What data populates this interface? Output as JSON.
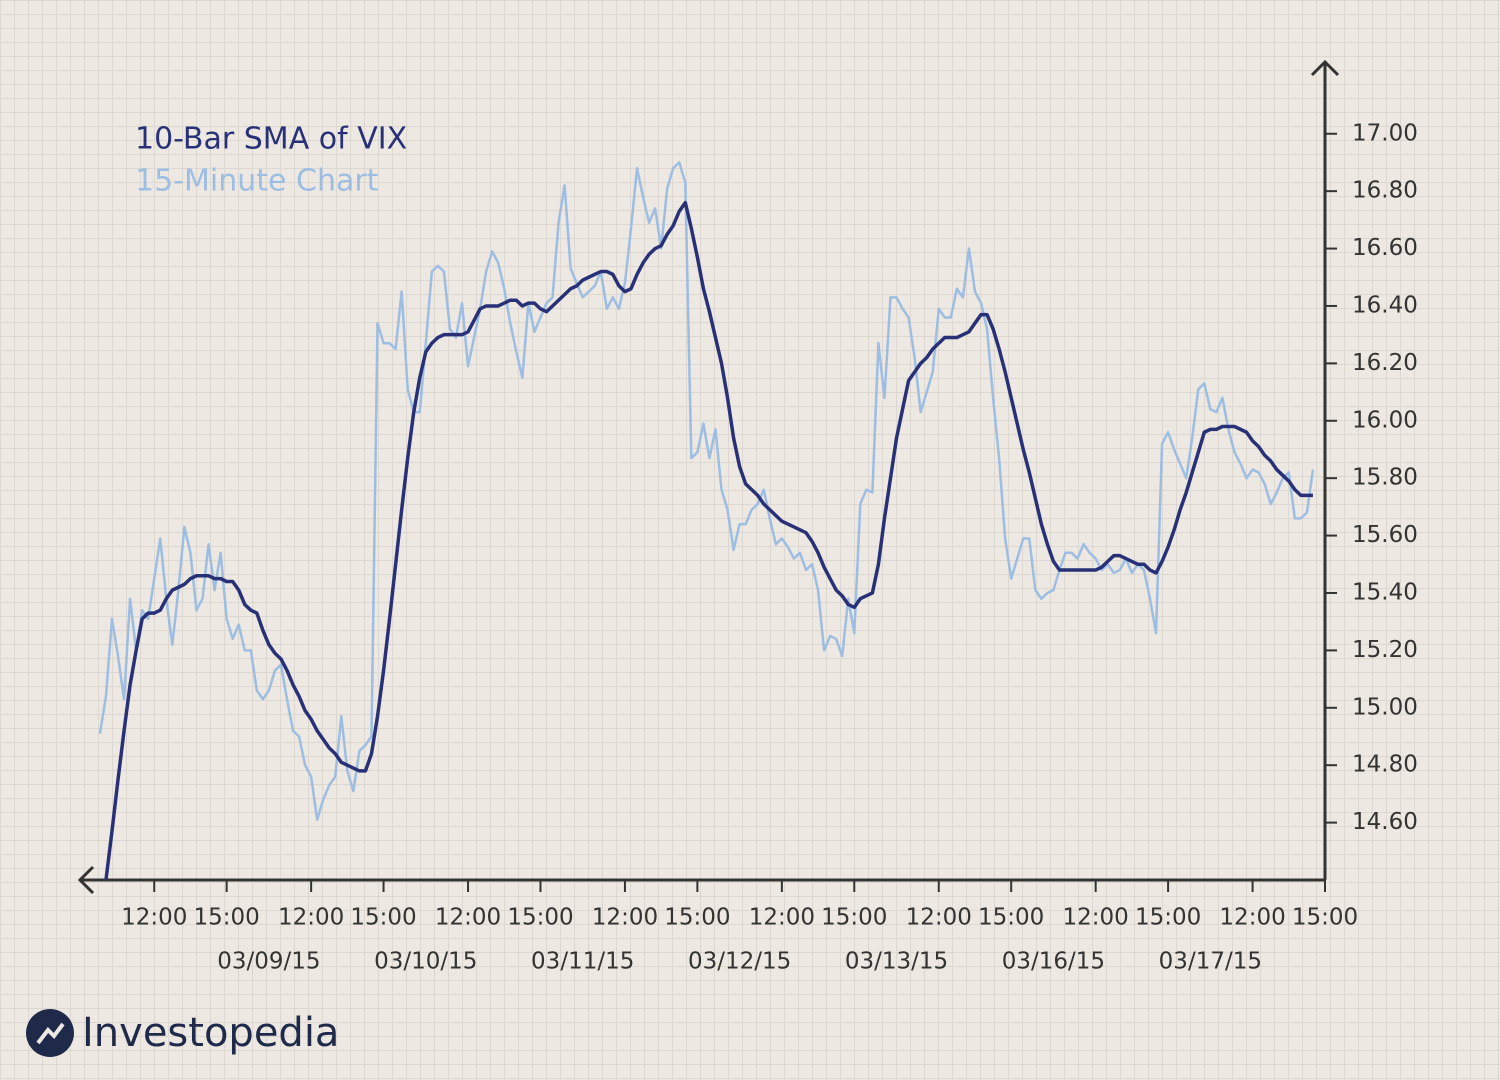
{
  "chart_data": {
    "type": "line",
    "series": [
      {
        "name": "10-Bar SMA of VIX",
        "color": "#283177",
        "values": [
          null,
          14.4,
          14.57,
          14.75,
          14.92,
          15.08,
          15.2,
          15.31,
          15.33,
          15.33,
          15.34,
          15.38,
          15.41,
          15.42,
          15.43,
          15.45,
          15.46,
          15.46,
          15.46,
          15.45,
          15.45,
          15.44,
          15.44,
          15.41,
          15.36,
          15.34,
          15.33,
          15.27,
          15.22,
          15.19,
          15.17,
          15.13,
          15.08,
          15.04,
          14.99,
          14.96,
          14.92,
          14.89,
          14.86,
          14.84,
          14.81,
          14.8,
          14.79,
          14.78,
          14.78,
          14.84,
          14.97,
          15.13,
          15.31,
          15.5,
          15.69,
          15.87,
          16.03,
          16.15,
          16.24,
          16.27,
          16.29,
          16.3,
          16.3,
          16.3,
          16.3,
          16.31,
          16.35,
          16.39,
          16.4,
          16.4,
          16.4,
          16.41,
          16.42,
          16.42,
          16.4,
          16.41,
          16.41,
          16.39,
          16.38,
          16.4,
          16.42,
          16.44,
          16.46,
          16.47,
          16.49,
          16.5,
          16.51,
          16.52,
          16.52,
          16.51,
          16.47,
          16.45,
          16.46,
          16.51,
          16.55,
          16.58,
          16.6,
          16.61,
          16.65,
          16.68,
          16.73,
          16.76,
          16.67,
          16.57,
          16.46,
          16.38,
          16.29,
          16.2,
          16.08,
          15.94,
          15.84,
          15.78,
          15.76,
          15.74,
          15.71,
          15.69,
          15.67,
          15.65,
          15.64,
          15.63,
          15.62,
          15.61,
          15.58,
          15.54,
          15.49,
          15.45,
          15.41,
          15.39,
          15.36,
          15.35,
          15.38,
          15.39,
          15.4,
          15.5,
          15.66,
          15.8,
          15.94,
          16.04,
          16.14,
          16.17,
          16.2,
          16.22,
          16.25,
          16.27,
          16.29,
          16.29,
          16.29,
          16.3,
          16.31,
          16.34,
          16.37,
          16.37,
          16.32,
          16.25,
          16.17,
          16.08,
          15.99,
          15.9,
          15.82,
          15.73,
          15.64,
          15.57,
          15.51,
          15.48,
          15.48,
          15.48,
          15.48,
          15.48,
          15.48,
          15.48,
          15.49,
          15.51,
          15.53,
          15.53,
          15.52,
          15.51,
          15.5,
          15.5,
          15.48,
          15.47,
          15.51,
          15.56,
          15.62,
          15.69,
          15.75,
          15.82,
          15.89,
          15.96,
          15.97,
          15.97,
          15.98,
          15.98,
          15.98,
          15.97,
          15.96,
          15.93,
          15.91,
          15.88,
          15.86,
          15.83,
          15.81,
          15.79,
          15.76,
          15.74,
          15.74,
          15.74
        ]
      },
      {
        "name": "15-Minute Chart",
        "color": "#9dbde3",
        "values": [
          14.91,
          15.04,
          15.31,
          15.18,
          15.03,
          15.38,
          15.2,
          15.34,
          15.31,
          15.45,
          15.59,
          15.38,
          15.22,
          15.41,
          15.63,
          15.54,
          15.34,
          15.38,
          15.57,
          15.41,
          15.54,
          15.31,
          15.24,
          15.29,
          15.2,
          15.2,
          15.06,
          15.03,
          15.06,
          15.13,
          15.15,
          15.03,
          14.92,
          14.9,
          14.8,
          14.76,
          14.61,
          14.68,
          14.73,
          14.76,
          14.97,
          14.78,
          14.71,
          14.85,
          14.87,
          14.9,
          16.34,
          16.27,
          16.27,
          16.25,
          16.45,
          16.11,
          16.03,
          16.03,
          16.27,
          16.52,
          16.54,
          16.52,
          16.32,
          16.29,
          16.41,
          16.19,
          16.29,
          16.39,
          16.52,
          16.59,
          16.55,
          16.46,
          16.34,
          16.24,
          16.15,
          16.41,
          16.31,
          16.36,
          16.41,
          16.43,
          16.69,
          16.82,
          16.53,
          16.48,
          16.43,
          16.45,
          16.47,
          16.52,
          16.39,
          16.43,
          16.39,
          16.48,
          16.67,
          16.88,
          16.78,
          16.69,
          16.74,
          16.6,
          16.81,
          16.88,
          16.9,
          16.83,
          15.87,
          15.89,
          15.99,
          15.87,
          15.97,
          15.76,
          15.69,
          15.55,
          15.64,
          15.64,
          15.69,
          15.71,
          15.76,
          15.66,
          15.57,
          15.59,
          15.56,
          15.52,
          15.54,
          15.48,
          15.5,
          15.41,
          15.2,
          15.25,
          15.24,
          15.18,
          15.38,
          15.26,
          15.71,
          15.76,
          15.75,
          16.27,
          16.08,
          16.43,
          16.43,
          16.39,
          16.36,
          16.22,
          16.03,
          16.1,
          16.17,
          16.39,
          16.36,
          16.36,
          16.46,
          16.43,
          16.6,
          16.45,
          16.41,
          16.32,
          16.08,
          15.87,
          15.59,
          15.45,
          15.52,
          15.59,
          15.59,
          15.41,
          15.38,
          15.4,
          15.41,
          15.48,
          15.54,
          15.54,
          15.52,
          15.57,
          15.54,
          15.52,
          15.48,
          15.5,
          15.47,
          15.48,
          15.52,
          15.47,
          15.5,
          15.48,
          15.38,
          15.26,
          15.92,
          15.96,
          15.9,
          15.85,
          15.8,
          15.94,
          16.11,
          16.13,
          16.04,
          16.03,
          16.08,
          15.97,
          15.89,
          15.85,
          15.8,
          15.83,
          15.82,
          15.78,
          15.71,
          15.75,
          15.8,
          15.82,
          15.66,
          15.66,
          15.68,
          15.83
        ]
      }
    ],
    "xlim": [
      -3.3,
      203
    ],
    "xticks": [
      {
        "value": 9,
        "label": "12:00"
      },
      {
        "value": 21,
        "label": "15:00"
      },
      {
        "value": 35,
        "label": "12:00"
      },
      {
        "value": 47,
        "label": "15:00"
      },
      {
        "value": 61,
        "label": "12:00"
      },
      {
        "value": 73,
        "label": "15:00"
      },
      {
        "value": 87,
        "label": "12:00"
      },
      {
        "value": 99,
        "label": "15:00"
      },
      {
        "value": 113,
        "label": "12:00"
      },
      {
        "value": 125,
        "label": "15:00"
      },
      {
        "value": 139,
        "label": "12:00"
      },
      {
        "value": 151,
        "label": "15:00"
      },
      {
        "value": 165,
        "label": "12:00"
      },
      {
        "value": 177,
        "label": "15:00"
      },
      {
        "value": 191,
        "label": "12:00"
      },
      {
        "value": 203,
        "label": "15:00"
      }
    ],
    "date_ticks": [
      {
        "value": 28,
        "label": "03/09/15"
      },
      {
        "value": 54,
        "label": "03/10/15"
      },
      {
        "value": 80,
        "label": "03/11/15"
      },
      {
        "value": 106,
        "label": "03/12/15"
      },
      {
        "value": 132,
        "label": "03/13/15"
      },
      {
        "value": 158,
        "label": "03/16/15"
      },
      {
        "value": 184,
        "label": "03/17/15"
      }
    ],
    "ylim": [
      14.4,
      17.25
    ],
    "yticks": [
      {
        "value": 14.6,
        "label": "14.60"
      },
      {
        "value": 14.8,
        "label": "14.80"
      },
      {
        "value": 15,
        "label": "15.00"
      },
      {
        "value": 15.2,
        "label": "15.20"
      },
      {
        "value": 15.4,
        "label": "15.40"
      },
      {
        "value": 15.6,
        "label": "15.60"
      },
      {
        "value": 15.8,
        "label": "15.80"
      },
      {
        "value": 16,
        "label": "16.00"
      },
      {
        "value": 16.2,
        "label": "16.20"
      },
      {
        "value": 16.4,
        "label": "16.40"
      },
      {
        "value": 16.6,
        "label": "16.60"
      },
      {
        "value": 16.8,
        "label": "16.80"
      },
      {
        "value": 17,
        "label": "17.00"
      }
    ],
    "grid": false,
    "legend": "top-left"
  },
  "brand": "Investopedia"
}
